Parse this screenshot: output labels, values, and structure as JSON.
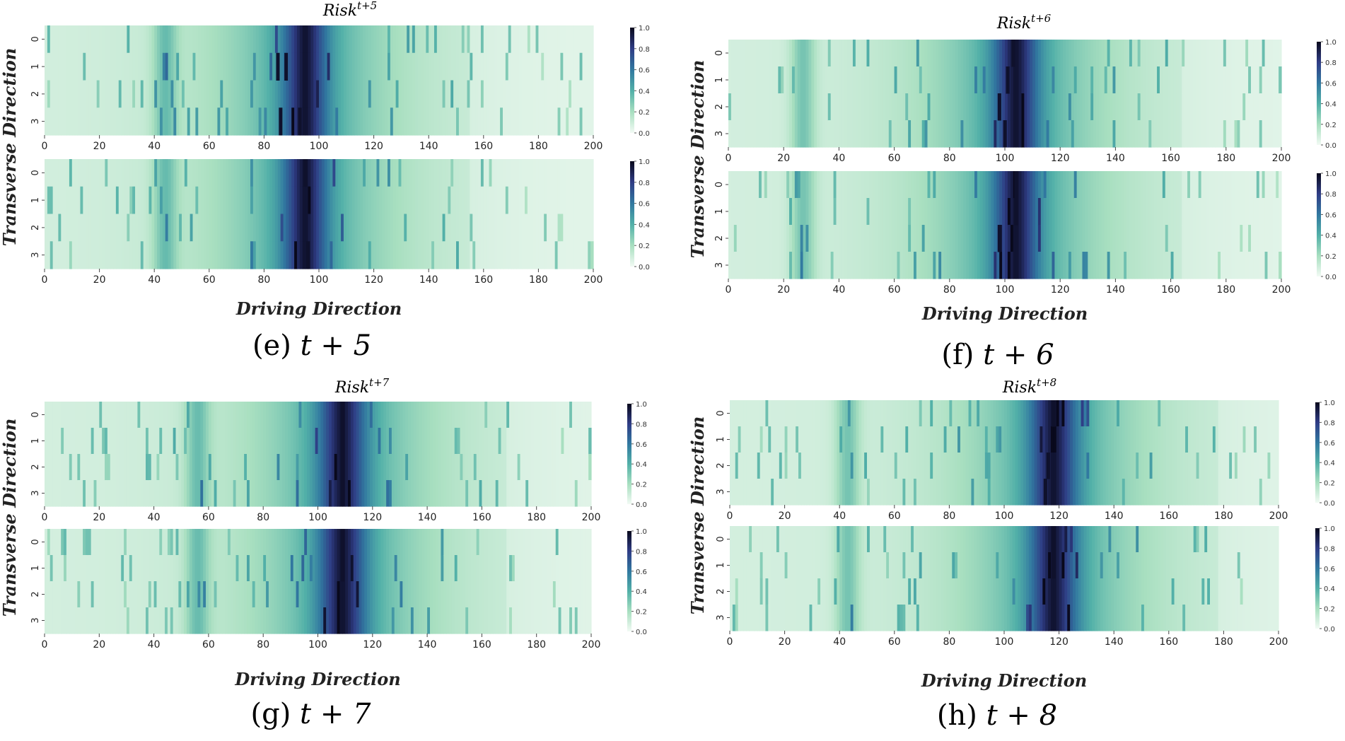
{
  "figure": {
    "colorscale": [
      "#f2faf4",
      "#a8dfc0",
      "#52b0a8",
      "#3178a0",
      "#2f3c85",
      "#09091c"
    ]
  },
  "chart_data": [
    {
      "type": "heatmap",
      "panel": "e",
      "title_base": "Risk",
      "title_sup": "t+5",
      "caption_label": "(e) ",
      "caption_math": "t + 5",
      "xlabel": "Driving Direction",
      "ylabel": "Transverse Direction",
      "x_range": [
        0,
        200
      ],
      "xticks": [
        "0",
        "20",
        "40",
        "60",
        "80",
        "100",
        "120",
        "140",
        "160",
        "180",
        "200"
      ],
      "y_categories": [
        "0",
        "1",
        "2",
        "3"
      ],
      "colorbar_ticks": [
        "0.0",
        "0.2",
        "0.4",
        "0.6",
        "0.8",
        "1.0"
      ],
      "colorbar_range": [
        0,
        1
      ],
      "subplots": [
        {
          "name": "predicted",
          "peak_x": 95,
          "peak_width": 11,
          "secondary_x": 44,
          "dark_cells": [
            [
              85,
              1
            ],
            [
              86,
              3
            ],
            [
              88,
              1
            ],
            [
              93,
              3
            ]
          ]
        },
        {
          "name": "ground_truth",
          "peak_x": 95,
          "peak_width": 11,
          "secondary_x": 44,
          "dark_cells": [
            [
              95,
              0
            ],
            [
              96,
              3
            ]
          ]
        }
      ]
    },
    {
      "type": "heatmap",
      "panel": "f",
      "title_base": "Risk",
      "title_sup": "t+6",
      "caption_label": "(f) ",
      "caption_math": "t + 6",
      "xlabel": "Driving Direction",
      "ylabel": "Transverse Direction",
      "x_range": [
        0,
        200
      ],
      "xticks": [
        "0",
        "20",
        "40",
        "60",
        "80",
        "100",
        "120",
        "140",
        "160",
        "180",
        "200"
      ],
      "y_categories": [
        "0",
        "1",
        "2",
        "3"
      ],
      "colorbar_ticks": [
        "0.0",
        "0.2",
        "0.4",
        "0.6",
        "0.8",
        "1.0"
      ],
      "colorbar_range": [
        0,
        1
      ],
      "subplots": [
        {
          "name": "predicted",
          "peak_x": 104,
          "peak_width": 11,
          "secondary_x": 27,
          "dark_cells": [
            [
              100,
              3
            ],
            [
              101,
              1
            ],
            [
              103,
              0
            ],
            [
              98,
              2
            ]
          ]
        },
        {
          "name": "ground_truth",
          "peak_x": 104,
          "peak_width": 11,
          "secondary_x": 27,
          "dark_cells": [
            [
              104,
              0
            ],
            [
              104,
              1
            ],
            [
              98,
              2
            ]
          ]
        }
      ]
    },
    {
      "type": "heatmap",
      "panel": "g",
      "title_base": "Risk",
      "title_sup": "t+7",
      "caption_label": "(g) ",
      "caption_math": "t + 7",
      "xlabel": "Driving Direction",
      "ylabel": "Transverse Direction",
      "x_range": [
        0,
        200
      ],
      "xticks": [
        "0",
        "20",
        "40",
        "60",
        "80",
        "100",
        "120",
        "140",
        "160",
        "180",
        "200"
      ],
      "y_categories": [
        "0",
        "1",
        "2",
        "3"
      ],
      "colorbar_ticks": [
        "0.0",
        "0.2",
        "0.4",
        "0.6",
        "0.8",
        "1.0"
      ],
      "colorbar_range": [
        0,
        1
      ],
      "subplots": [
        {
          "name": "predicted",
          "peak_x": 109,
          "peak_width": 12,
          "secondary_x": 56,
          "dark_cells": [
            [
              109,
              0
            ],
            [
              109,
              1
            ],
            [
              109,
              2
            ],
            [
              109,
              3
            ]
          ]
        },
        {
          "name": "ground_truth",
          "peak_x": 109,
          "peak_width": 12,
          "secondary_x": 56,
          "dark_cells": [
            [
              109,
              0
            ],
            [
              109,
              1
            ]
          ]
        }
      ]
    },
    {
      "type": "heatmap",
      "panel": "h",
      "title_base": "Risk",
      "title_sup": "t+8",
      "caption_label": "(h) ",
      "caption_math": "t + 8",
      "xlabel": "Driving Direction",
      "ylabel": "Transverse Direction",
      "x_range": [
        0,
        200
      ],
      "xticks": [
        "0",
        "20",
        "40",
        "60",
        "80",
        "100",
        "120",
        "140",
        "160",
        "180",
        "200"
      ],
      "y_categories": [
        "0",
        "1",
        "2",
        "3"
      ],
      "colorbar_ticks": [
        "0.0",
        "0.2",
        "0.4",
        "0.6",
        "0.8",
        "1.0"
      ],
      "colorbar_range": [
        0,
        1
      ],
      "subplots": [
        {
          "name": "predicted",
          "peak_x": 118,
          "peak_width": 12,
          "secondary_x": 43,
          "dark_cells": [
            [
              118,
              0
            ],
            [
              116,
              2
            ],
            [
              115,
              3
            ]
          ]
        },
        {
          "name": "ground_truth",
          "peak_x": 118,
          "peak_width": 12,
          "secondary_x": 43,
          "dark_cells": [
            [
              118,
              0
            ],
            [
              118,
              1
            ]
          ]
        }
      ]
    }
  ]
}
